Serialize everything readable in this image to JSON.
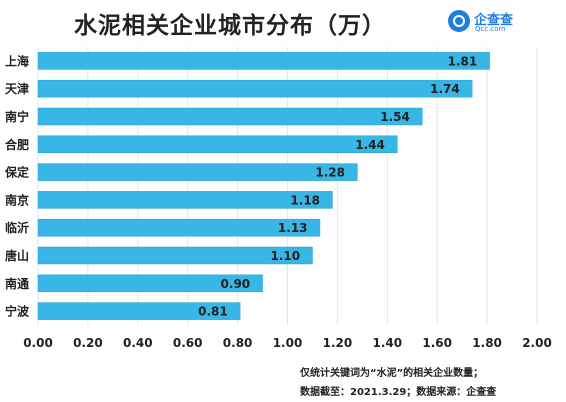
{
  "title": "水泥相关企业城市分布（万）",
  "logo": {
    "name": "企查查",
    "sub": "Qcc.com"
  },
  "footnotes": [
    "仅统计关键词为“水泥”的相关企业数量；",
    "数据截至：2021.3.29；数据来源：企查查"
  ],
  "colors": {
    "bar": "#38b6e6",
    "bar_border": "#2a9fd0",
    "grid": "#e6e6e6",
    "text": "#222222"
  },
  "chart_data": {
    "type": "bar",
    "orientation": "horizontal",
    "title": "水泥相关企业城市分布（万）",
    "categories": [
      "上海",
      "天津",
      "南宁",
      "合肥",
      "保定",
      "南京",
      "临沂",
      "唐山",
      "南通",
      "宁波"
    ],
    "values": [
      1.81,
      1.74,
      1.54,
      1.44,
      1.28,
      1.18,
      1.13,
      1.1,
      0.9,
      0.81
    ],
    "data_labels": [
      "1.81",
      "1.74",
      "1.54",
      "1.44",
      "1.28",
      "1.18",
      "1.13",
      "1.10",
      "0.90",
      "0.81"
    ],
    "xlim": [
      0,
      2.0
    ],
    "xticks": [
      "0.00",
      "0.20",
      "0.40",
      "0.60",
      "0.80",
      "1.00",
      "1.20",
      "1.40",
      "1.60",
      "1.80",
      "2.00"
    ],
    "grid": true
  }
}
